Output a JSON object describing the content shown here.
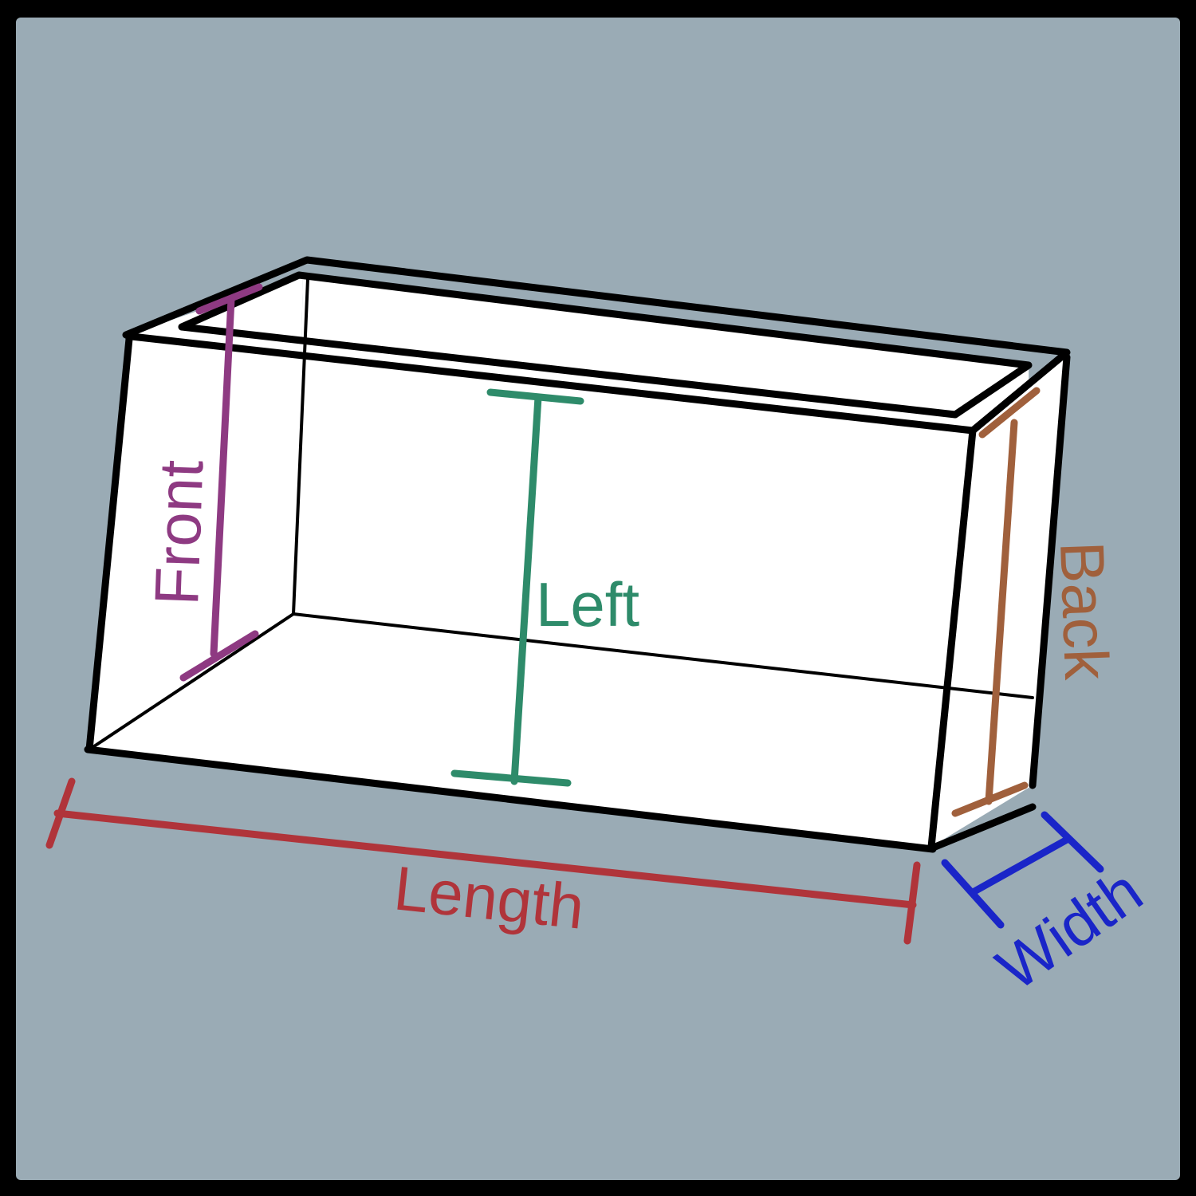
{
  "colors": {
    "background": "#9aabb5",
    "frame": "#000000",
    "box_face": "#ffffff",
    "box_outline": "#000000",
    "front": "#8e3a82",
    "left": "#2e8b6a",
    "back": "#a0603c",
    "length": "#b0343a",
    "width": "#1a25c8"
  },
  "labels": {
    "front": "Front",
    "left": "Left",
    "back": "Back",
    "length": "Length",
    "width": "Width"
  }
}
